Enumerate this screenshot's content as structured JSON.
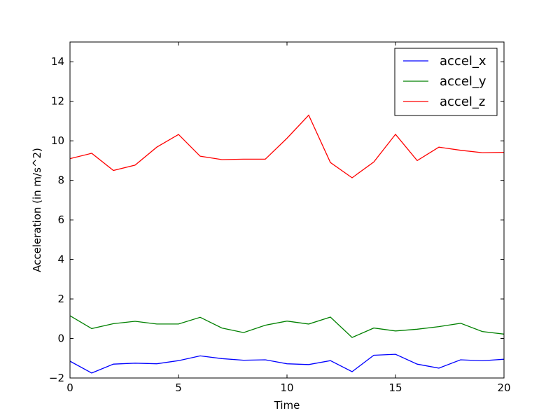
{
  "chart_data": {
    "type": "line",
    "title": "",
    "xlabel": "Time",
    "ylabel": "Acceleration (in m/s^2)",
    "xlim": [
      0,
      20
    ],
    "ylim": [
      -2,
      15
    ],
    "xticks": [
      0,
      5,
      10,
      15,
      20
    ],
    "yticks": [
      -2,
      0,
      2,
      4,
      6,
      8,
      10,
      12,
      14
    ],
    "grid": false,
    "legend_position": "top-right",
    "x": [
      0,
      1,
      2,
      3,
      4,
      5,
      6,
      7,
      8,
      9,
      10,
      11,
      12,
      13,
      14,
      15,
      16,
      17,
      18,
      19,
      20
    ],
    "series": [
      {
        "name": "accel_x",
        "color": "#0000ff",
        "values": [
          -1.15,
          -1.75,
          -1.3,
          -1.25,
          -1.28,
          -1.12,
          -0.88,
          -1.02,
          -1.1,
          -1.08,
          -1.28,
          -1.32,
          -1.12,
          -1.68,
          -0.85,
          -0.8,
          -1.3,
          -1.5,
          -1.08,
          -1.13,
          -1.05
        ]
      },
      {
        "name": "accel_y",
        "color": "#008000",
        "values": [
          1.15,
          0.5,
          0.75,
          0.87,
          0.73,
          0.73,
          1.07,
          0.53,
          0.3,
          0.67,
          0.88,
          0.73,
          1.08,
          0.05,
          0.53,
          0.38,
          0.47,
          0.6,
          0.77,
          0.35,
          0.22
        ]
      },
      {
        "name": "accel_z",
        "color": "#ff0000",
        "values": [
          9.1,
          9.37,
          8.5,
          8.77,
          9.68,
          10.32,
          9.22,
          9.05,
          9.07,
          9.07,
          10.13,
          11.3,
          8.9,
          8.13,
          8.93,
          10.33,
          9.0,
          9.68,
          9.52,
          9.4,
          9.42
        ]
      }
    ]
  }
}
